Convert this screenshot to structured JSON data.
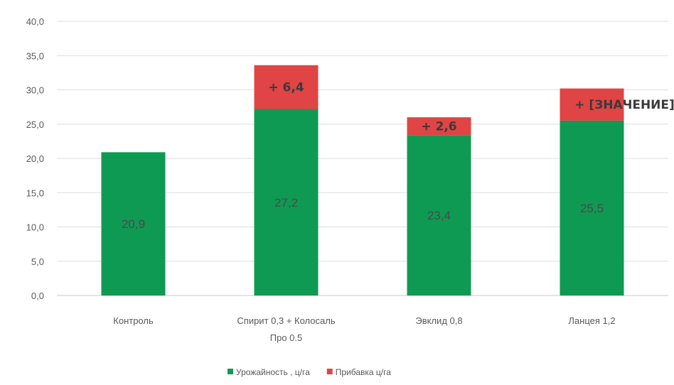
{
  "chart_data": {
    "type": "bar",
    "stacked": true,
    "categories": [
      "Контроль",
      "Спирит 0,3 + Колосаль Про 0.5",
      "Эвклид 0,8",
      "Ланцея 1,2"
    ],
    "category_lines": [
      [
        "Контроль"
      ],
      [
        "Спирит 0,3 + Колосаль",
        "Про 0.5"
      ],
      [
        "Эвклид 0,8"
      ],
      [
        "Ланцея 1,2"
      ]
    ],
    "series": [
      {
        "name": "Урожайность , ц/га",
        "color": "#0e9a53",
        "values": [
          20.9,
          27.2,
          23.4,
          25.5
        ],
        "labels": [
          "20,9",
          "27,2",
          "23,4",
          "25,5"
        ]
      },
      {
        "name": "Прибавка ц/га",
        "color": "#e04444",
        "values": [
          0,
          6.4,
          2.6,
          4.7
        ],
        "labels": [
          "",
          "+ 6,4",
          "+ 2,6",
          "+ [ЗНАЧЕНИЕ]"
        ]
      }
    ],
    "ylim": [
      0,
      40
    ],
    "yticks": [
      0,
      5,
      10,
      15,
      20,
      25,
      30,
      35,
      40
    ],
    "ytick_labels": [
      "0,0",
      "5,0",
      "10,0",
      "15,0",
      "20,0",
      "25,0",
      "30,0",
      "35,0",
      "40,0"
    ],
    "grid": true,
    "legend_position": "bottom",
    "title": "",
    "xlabel": "",
    "ylabel": ""
  }
}
